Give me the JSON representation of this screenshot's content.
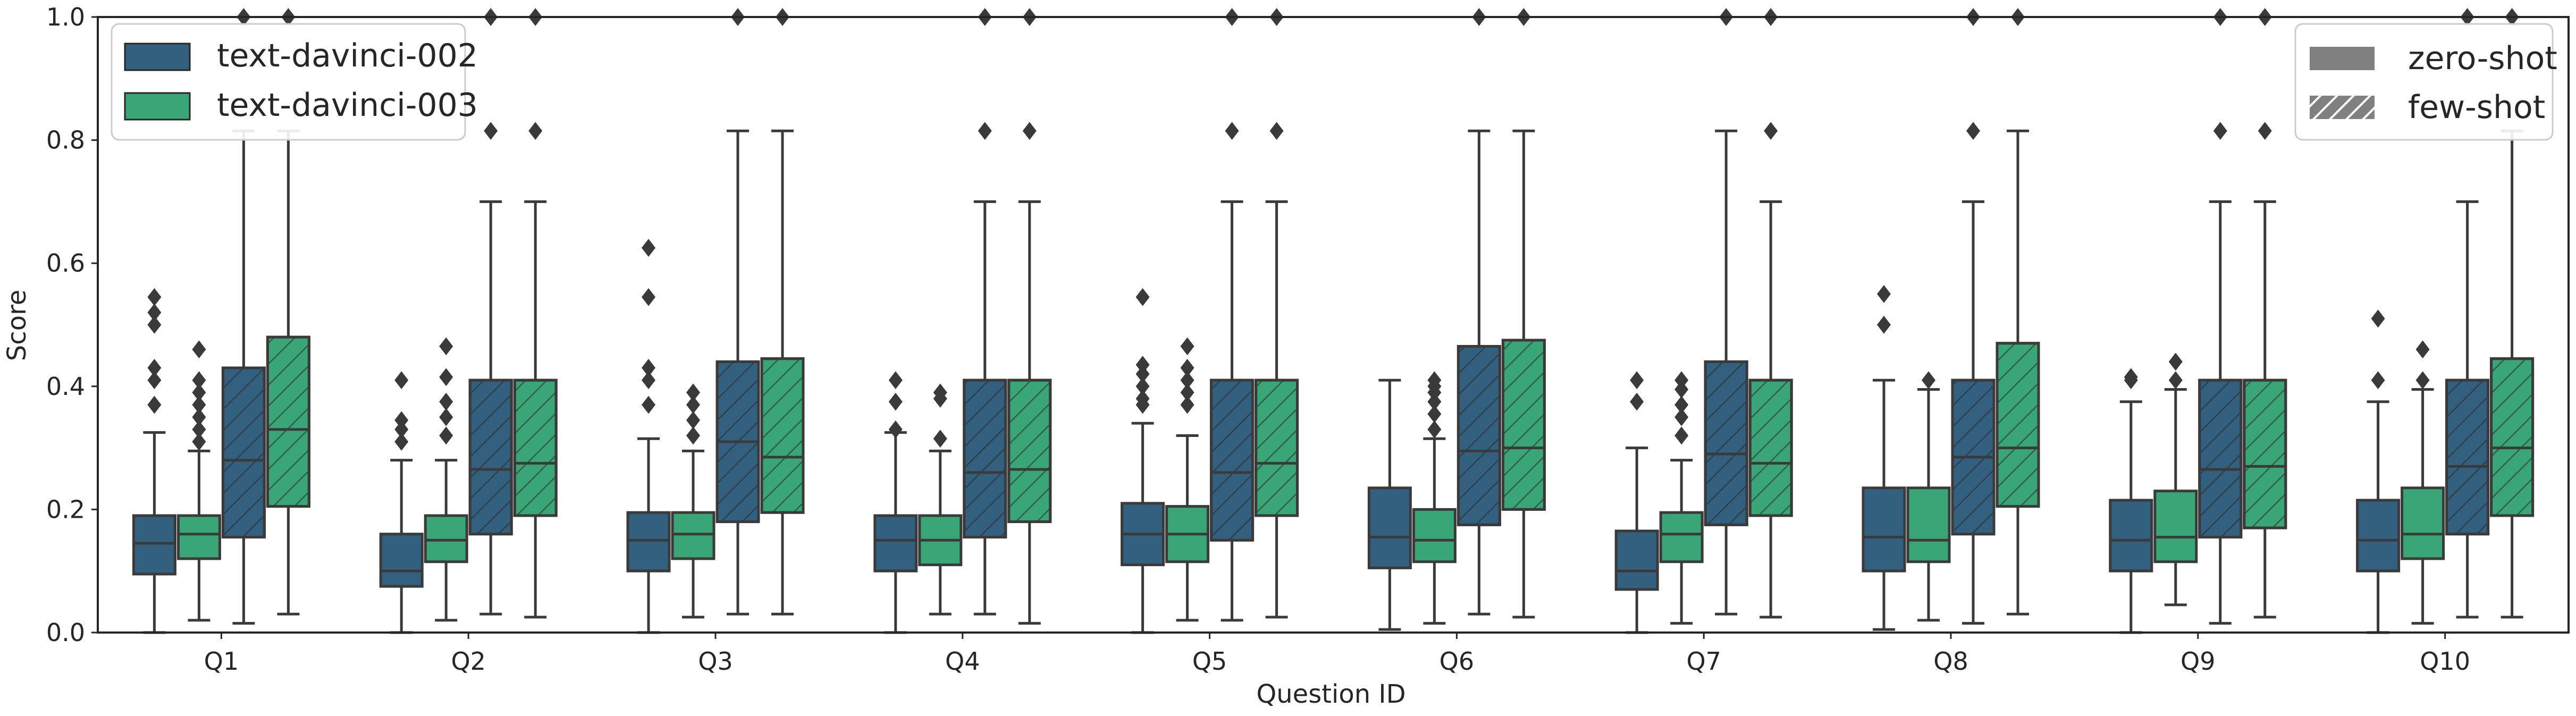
{
  "chart_data": {
    "type": "box",
    "xlabel": "Question ID",
    "ylabel": "Score",
    "ylim": [
      0,
      1.0
    ],
    "yticks": [
      "0.0",
      "0.2",
      "0.4",
      "0.6",
      "0.8",
      "1.0"
    ],
    "categories": [
      "Q1",
      "Q2",
      "Q3",
      "Q4",
      "Q5",
      "Q6",
      "Q7",
      "Q8",
      "Q9",
      "Q10"
    ],
    "grid": false,
    "legends": {
      "model": {
        "placement": "top-left",
        "items": [
          {
            "label": "text-davinci-002",
            "color": "#34607f"
          },
          {
            "label": "text-davinci-003",
            "color": "#3aa577"
          }
        ]
      },
      "prompting": {
        "placement": "top-right",
        "items": [
          {
            "label": "zero-shot",
            "pattern": "solid"
          },
          {
            "label": "few-shot",
            "pattern": "hatched"
          }
        ]
      }
    },
    "series": [
      {
        "name": "text-davinci-002",
        "prompting": "zero-shot",
        "boxes": [
          {
            "min": 0.0,
            "q1": 0.095,
            "median": 0.145,
            "q3": 0.19,
            "max": 0.325,
            "outliers": [
              0.37,
              0.41,
              0.43,
              0.5,
              0.52,
              0.545
            ]
          },
          {
            "min": 0.0,
            "q1": 0.075,
            "median": 0.1,
            "q3": 0.16,
            "max": 0.28,
            "outliers": [
              0.31,
              0.33,
              0.345,
              0.41
            ]
          },
          {
            "min": 0.0,
            "q1": 0.1,
            "median": 0.15,
            "q3": 0.195,
            "max": 0.315,
            "outliers": [
              0.37,
              0.41,
              0.43,
              0.545,
              0.625
            ]
          },
          {
            "min": 0.0,
            "q1": 0.1,
            "median": 0.15,
            "q3": 0.19,
            "max": 0.325,
            "outliers": [
              0.33,
              0.375,
              0.41
            ]
          },
          {
            "min": 0.0,
            "q1": 0.11,
            "median": 0.16,
            "q3": 0.21,
            "max": 0.34,
            "outliers": [
              0.37,
              0.38,
              0.4,
              0.42,
              0.435,
              0.545
            ]
          },
          {
            "min": 0.005,
            "q1": 0.105,
            "median": 0.155,
            "q3": 0.235,
            "max": 0.41,
            "outliers": []
          },
          {
            "min": 0.0,
            "q1": 0.07,
            "median": 0.1,
            "q3": 0.165,
            "max": 0.3,
            "outliers": [
              0.375,
              0.41
            ]
          },
          {
            "min": 0.005,
            "q1": 0.1,
            "median": 0.155,
            "q3": 0.235,
            "max": 0.41,
            "outliers": [
              0.5,
              0.55
            ]
          },
          {
            "min": 0.0,
            "q1": 0.1,
            "median": 0.15,
            "q3": 0.215,
            "max": 0.375,
            "outliers": [
              0.41,
              0.415
            ]
          },
          {
            "min": 0.0,
            "q1": 0.1,
            "median": 0.15,
            "q3": 0.215,
            "max": 0.375,
            "outliers": [
              0.41,
              0.51
            ]
          }
        ]
      },
      {
        "name": "text-davinci-003",
        "prompting": "zero-shot",
        "boxes": [
          {
            "min": 0.02,
            "q1": 0.12,
            "median": 0.16,
            "q3": 0.19,
            "max": 0.295,
            "outliers": [
              0.31,
              0.33,
              0.35,
              0.37,
              0.39,
              0.41,
              0.46
            ]
          },
          {
            "min": 0.02,
            "q1": 0.115,
            "median": 0.15,
            "q3": 0.19,
            "max": 0.28,
            "outliers": [
              0.32,
              0.35,
              0.375,
              0.415,
              0.465
            ]
          },
          {
            "min": 0.025,
            "q1": 0.12,
            "median": 0.16,
            "q3": 0.195,
            "max": 0.295,
            "outliers": [
              0.32,
              0.345,
              0.37,
              0.39
            ]
          },
          {
            "min": 0.03,
            "q1": 0.11,
            "median": 0.15,
            "q3": 0.19,
            "max": 0.295,
            "outliers": [
              0.315,
              0.38,
              0.39
            ]
          },
          {
            "min": 0.02,
            "q1": 0.115,
            "median": 0.16,
            "q3": 0.205,
            "max": 0.32,
            "outliers": [
              0.37,
              0.39,
              0.41,
              0.43,
              0.465
            ]
          },
          {
            "min": 0.015,
            "q1": 0.115,
            "median": 0.15,
            "q3": 0.2,
            "max": 0.315,
            "outliers": [
              0.33,
              0.355,
              0.375,
              0.39,
              0.4,
              0.41
            ]
          },
          {
            "min": 0.015,
            "q1": 0.115,
            "median": 0.16,
            "q3": 0.195,
            "max": 0.28,
            "outliers": [
              0.32,
              0.35,
              0.37,
              0.395,
              0.41
            ]
          },
          {
            "min": 0.02,
            "q1": 0.115,
            "median": 0.15,
            "q3": 0.235,
            "max": 0.395,
            "outliers": [
              0.41
            ]
          },
          {
            "min": 0.045,
            "q1": 0.115,
            "median": 0.155,
            "q3": 0.23,
            "max": 0.395,
            "outliers": [
              0.41,
              0.44
            ]
          },
          {
            "min": 0.015,
            "q1": 0.12,
            "median": 0.16,
            "q3": 0.235,
            "max": 0.395,
            "outliers": [
              0.41,
              0.46
            ]
          }
        ]
      },
      {
        "name": "text-davinci-002",
        "prompting": "few-shot",
        "boxes": [
          {
            "min": 0.015,
            "q1": 0.155,
            "median": 0.28,
            "q3": 0.43,
            "max": 0.815,
            "outliers": [
              1.0
            ]
          },
          {
            "min": 0.03,
            "q1": 0.16,
            "median": 0.265,
            "q3": 0.41,
            "max": 0.7,
            "outliers": [
              0.815,
              1.0
            ]
          },
          {
            "min": 0.03,
            "q1": 0.18,
            "median": 0.31,
            "q3": 0.44,
            "max": 0.815,
            "outliers": [
              1.0
            ]
          },
          {
            "min": 0.03,
            "q1": 0.155,
            "median": 0.26,
            "q3": 0.41,
            "max": 0.7,
            "outliers": [
              0.815,
              1.0
            ]
          },
          {
            "min": 0.02,
            "q1": 0.15,
            "median": 0.26,
            "q3": 0.41,
            "max": 0.7,
            "outliers": [
              0.815,
              1.0
            ]
          },
          {
            "min": 0.03,
            "q1": 0.175,
            "median": 0.295,
            "q3": 0.465,
            "max": 0.815,
            "outliers": [
              1.0
            ]
          },
          {
            "min": 0.03,
            "q1": 0.175,
            "median": 0.29,
            "q3": 0.44,
            "max": 0.815,
            "outliers": [
              1.0
            ]
          },
          {
            "min": 0.015,
            "q1": 0.16,
            "median": 0.285,
            "q3": 0.41,
            "max": 0.7,
            "outliers": [
              0.815,
              1.0
            ]
          },
          {
            "min": 0.015,
            "q1": 0.155,
            "median": 0.265,
            "q3": 0.41,
            "max": 0.7,
            "outliers": [
              0.815,
              1.0
            ]
          },
          {
            "min": 0.025,
            "q1": 0.16,
            "median": 0.27,
            "q3": 0.41,
            "max": 0.7,
            "outliers": [
              1.0
            ]
          }
        ]
      },
      {
        "name": "text-davinci-003",
        "prompting": "few-shot",
        "boxes": [
          {
            "min": 0.03,
            "q1": 0.205,
            "median": 0.33,
            "q3": 0.48,
            "max": 0.815,
            "outliers": [
              1.0
            ]
          },
          {
            "min": 0.025,
            "q1": 0.19,
            "median": 0.275,
            "q3": 0.41,
            "max": 0.7,
            "outliers": [
              0.815,
              1.0
            ]
          },
          {
            "min": 0.03,
            "q1": 0.195,
            "median": 0.285,
            "q3": 0.445,
            "max": 0.815,
            "outliers": [
              1.0
            ]
          },
          {
            "min": 0.015,
            "q1": 0.18,
            "median": 0.265,
            "q3": 0.41,
            "max": 0.7,
            "outliers": [
              0.815,
              1.0
            ]
          },
          {
            "min": 0.025,
            "q1": 0.19,
            "median": 0.275,
            "q3": 0.41,
            "max": 0.7,
            "outliers": [
              0.815,
              1.0
            ]
          },
          {
            "min": 0.025,
            "q1": 0.2,
            "median": 0.3,
            "q3": 0.475,
            "max": 0.815,
            "outliers": [
              1.0
            ]
          },
          {
            "min": 0.025,
            "q1": 0.19,
            "median": 0.275,
            "q3": 0.41,
            "max": 0.7,
            "outliers": [
              0.815,
              1.0
            ]
          },
          {
            "min": 0.03,
            "q1": 0.205,
            "median": 0.3,
            "q3": 0.47,
            "max": 0.815,
            "outliers": [
              1.0
            ]
          },
          {
            "min": 0.025,
            "q1": 0.17,
            "median": 0.27,
            "q3": 0.41,
            "max": 0.7,
            "outliers": [
              0.815,
              1.0
            ]
          },
          {
            "min": 0.025,
            "q1": 0.19,
            "median": 0.3,
            "q3": 0.445,
            "max": 0.815,
            "outliers": [
              1.0
            ]
          }
        ]
      }
    ]
  }
}
